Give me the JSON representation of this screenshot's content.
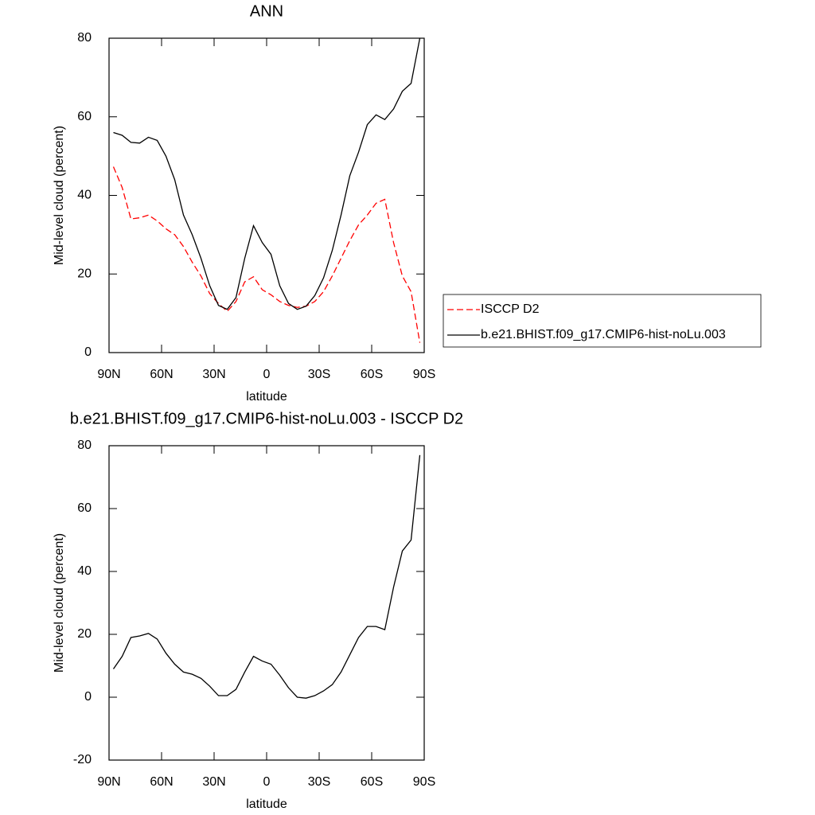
{
  "chart_data": [
    {
      "type": "line",
      "title": "ANN",
      "xlabel": "latitude",
      "ylabel": "Mid-level cloud (percent)",
      "x": [
        87.5,
        82.5,
        77.5,
        72.5,
        67.5,
        62.5,
        57.5,
        52.5,
        47.5,
        42.5,
        37.5,
        32.5,
        27.5,
        22.5,
        17.5,
        12.5,
        7.5,
        2.5,
        -2.5,
        -7.5,
        -12.5,
        -17.5,
        -22.5,
        -27.5,
        -32.5,
        -37.5,
        -42.5,
        -47.5,
        -52.5,
        -57.5,
        -62.5,
        -67.5,
        -72.5,
        -77.5,
        -82.5,
        -87.5
      ],
      "series": [
        {
          "name": "ISCCP D2",
          "color": "#ff0000",
          "dashed": true,
          "values": [
            47.3,
            42,
            34,
            34.3,
            35,
            33.5,
            31.5,
            30,
            27,
            23,
            19.5,
            15,
            12.5,
            10.5,
            13,
            18,
            19.3,
            16,
            14.7,
            13,
            12,
            11.5,
            11.8,
            13,
            15.5,
            19.5,
            24,
            28.5,
            32.5,
            35,
            38,
            39,
            28,
            19.5,
            15.5,
            2.5
          ]
        },
        {
          "name": "b.e21.BHIST.f09_g17.CMIP6-hist-noLu.003",
          "color": "#000000",
          "dashed": false,
          "values": [
            56,
            55.3,
            53.5,
            53.3,
            54.8,
            54,
            50,
            44,
            35,
            30,
            24,
            17,
            12,
            11,
            14,
            24,
            32.3,
            28,
            25,
            17,
            12.5,
            11,
            11.8,
            14.5,
            19,
            26,
            35,
            45,
            51,
            58,
            60.5,
            59.3,
            62,
            66.5,
            68.5,
            80
          ]
        }
      ],
      "xlim": [
        90,
        -90
      ],
      "xticks": [
        {
          "value": 90,
          "label": "90N"
        },
        {
          "value": 60,
          "label": "60N"
        },
        {
          "value": 30,
          "label": "30N"
        },
        0,
        {
          "value": -30,
          "label": "30S"
        },
        {
          "value": -60,
          "label": "60S"
        },
        {
          "value": -90,
          "label": "90S"
        }
      ],
      "ylim": [
        0,
        80
      ],
      "yticks": [
        0,
        20,
        40,
        60,
        80
      ],
      "legend": "right"
    },
    {
      "type": "line",
      "title": "b.e21.BHIST.f09_g17.CMIP6-hist-noLu.003 - ISCCP D2",
      "xlabel": "latitude",
      "ylabel": "Mid-level cloud (percent)",
      "x": [
        87.5,
        82.5,
        77.5,
        72.5,
        67.5,
        62.5,
        57.5,
        52.5,
        47.5,
        42.5,
        37.5,
        32.5,
        27.5,
        22.5,
        17.5,
        12.5,
        7.5,
        2.5,
        -2.5,
        -7.5,
        -12.5,
        -17.5,
        -22.5,
        -27.5,
        -32.5,
        -37.5,
        -42.5,
        -47.5,
        -52.5,
        -57.5,
        -62.5,
        -67.5,
        -72.5,
        -77.5,
        -82.5,
        -87.5
      ],
      "series": [
        {
          "color": "#000000",
          "dashed": false,
          "values": [
            9,
            13,
            19,
            19.5,
            20.3,
            18.5,
            14,
            10.5,
            8,
            7.3,
            6,
            3.5,
            0.5,
            0.5,
            2.5,
            8,
            13,
            11.5,
            10.5,
            7,
            3,
            0,
            -0.3,
            0.5,
            2,
            4,
            8,
            13.5,
            19,
            22.5,
            22.5,
            21.5,
            35,
            46.5,
            50,
            77
          ]
        }
      ],
      "xlim": [
        90,
        -90
      ],
      "xticks": [
        {
          "value": 90,
          "label": "90N"
        },
        {
          "value": 60,
          "label": "60N"
        },
        {
          "value": 30,
          "label": "30N"
        },
        0,
        {
          "value": -30,
          "label": "30S"
        },
        {
          "value": -60,
          "label": "60S"
        },
        {
          "value": -90,
          "label": "90S"
        }
      ],
      "ylim": [
        -20,
        80
      ],
      "yticks": [
        -20,
        0,
        20,
        40,
        60,
        80
      ]
    }
  ]
}
